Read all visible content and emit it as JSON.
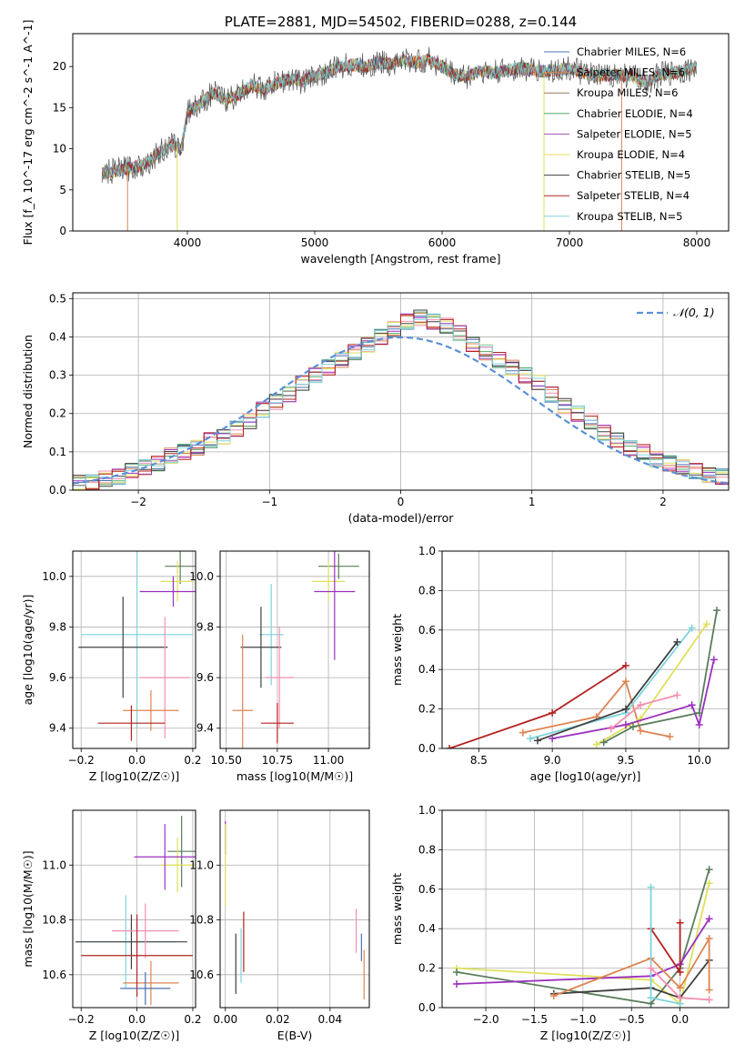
{
  "chart_data": [
    {
      "type": "line",
      "title": "PLATE=2881, MJD=54502, FIBERID=0288, z=0.144",
      "xlabel": "wavelength [Angstrom, rest frame]",
      "ylabel": "Flux [f_λ 10^-17 erg cm^-2 s^-1 A^-1]",
      "xlim": [
        3100,
        8250
      ],
      "ylim": [
        0,
        24
      ],
      "xticks": [
        "4000",
        "5000",
        "6000",
        "7000",
        "8000"
      ],
      "yticks": [
        "0",
        "5",
        "10",
        "15",
        "20"
      ],
      "grid": false,
      "legend_position": "upper-right",
      "series": [
        {
          "name": "Chabrier MILES, N_SSP=6",
          "color": "#4c72b0"
        },
        {
          "name": "Salpeter MILES, N_SSP=6",
          "color": "#dd8452"
        },
        {
          "name": "Kroupa MILES, N_SSP=6",
          "color": "#937860"
        },
        {
          "name": "Chabrier ELODIE, N_SSP=4",
          "color": "#55a868"
        },
        {
          "name": "Salpeter ELODIE, N_SSP=5",
          "color": "#9b59b6"
        },
        {
          "name": "Kroupa ELODIE, N_SSP=4",
          "color": "#dfe05a"
        },
        {
          "name": "Chabrier STELIB, N_SSP=5",
          "color": "#404040"
        },
        {
          "name": "Salpeter STELIB, N_SSP=4",
          "color": "#b22222"
        },
        {
          "name": "Kroupa STELIB, N_SSP=5",
          "color": "#7fd3dc"
        }
      ],
      "spectrum": {
        "x": [
          3330,
          3400,
          3500,
          3600,
          3700,
          3800,
          3900,
          3950,
          4000,
          4100,
          4200,
          4300,
          4400,
          4500,
          4600,
          4700,
          4800,
          4900,
          5000,
          5100,
          5200,
          5300,
          5400,
          5500,
          5600,
          5700,
          5800,
          5900,
          6000,
          6100,
          6200,
          6300,
          6400,
          6500,
          6600,
          6700,
          6800,
          6900,
          7000,
          7100,
          7200,
          7300,
          7400,
          7500,
          7600,
          7700,
          7800,
          7900,
          8000
        ],
        "y": [
          7.0,
          7.2,
          7.5,
          7.8,
          8.5,
          9.8,
          10.5,
          9.8,
          14.5,
          15.5,
          16.8,
          16.0,
          16.5,
          17.8,
          17.2,
          18.0,
          18.5,
          18.2,
          18.8,
          19.3,
          20.0,
          20.2,
          20.0,
          20.5,
          20.3,
          20.8,
          20.5,
          20.8,
          20.0,
          19.0,
          18.8,
          19.5,
          19.2,
          19.5,
          19.8,
          19.6,
          19.4,
          19.6,
          19.8,
          19.2,
          18.8,
          19.0,
          19.0,
          18.8,
          18.0,
          19.0,
          19.2,
          19.5,
          19.8
        ]
      }
    },
    {
      "type": "step",
      "xlabel": "(data-model)/error",
      "ylabel": "Normed distribution",
      "xlim": [
        -2.5,
        2.5
      ],
      "ylim": [
        0,
        0.515
      ],
      "xticks": [
        "−2",
        "−1",
        "0",
        "1",
        "2"
      ],
      "yticks": [
        "0.0",
        "0.1",
        "0.2",
        "0.3",
        "0.4",
        "0.5"
      ],
      "grid": true,
      "legend": "𝒩(0, 1)",
      "legend_position": "upper-right",
      "bin_width": 0.1,
      "histogram": [
        0.02,
        0.02,
        0.03,
        0.035,
        0.05,
        0.06,
        0.07,
        0.09,
        0.1,
        0.11,
        0.13,
        0.14,
        0.16,
        0.18,
        0.21,
        0.23,
        0.25,
        0.28,
        0.3,
        0.32,
        0.34,
        0.36,
        0.38,
        0.4,
        0.42,
        0.44,
        0.45,
        0.44,
        0.43,
        0.41,
        0.38,
        0.36,
        0.34,
        0.32,
        0.3,
        0.28,
        0.25,
        0.22,
        0.2,
        0.18,
        0.15,
        0.13,
        0.11,
        0.1,
        0.08,
        0.07,
        0.06,
        0.05,
        0.04,
        0.035
      ]
    },
    {
      "type": "errorbar",
      "xlabel": "Z [log10(Z/Z☉)]",
      "ylabel": "age [log10(age/yr)]",
      "xlim": [
        -0.23,
        0.21
      ],
      "ylim": [
        9.32,
        10.1
      ],
      "xticks": [
        "−0.2",
        "0.0",
        "0.2"
      ],
      "yticks": [
        "9.4",
        "9.6",
        "9.8",
        "10.0"
      ],
      "grid": true,
      "points": [
        {
          "x": 0.155,
          "y": 10.04,
          "xerr": 0.055,
          "yerr": 0.07,
          "color": "#5a7d5a"
        },
        {
          "x": 0.145,
          "y": 9.98,
          "xerr": 0.06,
          "yerr": 0.08,
          "color": "#dfe05a"
        },
        {
          "x": 0.13,
          "y": 9.94,
          "xerr": 0.12,
          "yerr": 0.06,
          "color": "#9b30c0"
        },
        {
          "x": 0.0,
          "y": 9.77,
          "xerr": 0.2,
          "yerr": 0.37,
          "color": "#7fd3dc"
        },
        {
          "x": -0.05,
          "y": 9.72,
          "xerr": 0.16,
          "yerr": 0.2,
          "color": "#404040"
        },
        {
          "x": 0.1,
          "y": 9.6,
          "xerr": 0.09,
          "yerr": 0.24,
          "color": "#f48fb1"
        },
        {
          "x": 0.05,
          "y": 9.47,
          "xerr": 0.1,
          "yerr": 0.08,
          "color": "#dd8452"
        },
        {
          "x": -0.02,
          "y": 9.42,
          "xerr": 0.12,
          "yerr": 0.07,
          "color": "#b22222"
        }
      ]
    },
    {
      "type": "errorbar",
      "xlabel": "mass [log10(M/M☉)]",
      "xlim": [
        10.47,
        11.2
      ],
      "ylim": [
        9.32,
        10.1
      ],
      "xticks": [
        "10.50",
        "10.75",
        "11.00"
      ],
      "yticks": [
        "9.4",
        "9.6",
        "9.8",
        "10.0"
      ],
      "grid": true,
      "points": [
        {
          "x": 11.05,
          "y": 10.04,
          "xerr": 0.1,
          "yerr": 0.05,
          "color": "#5a7d5a"
        },
        {
          "x": 11.0,
          "y": 9.98,
          "xerr": 0.08,
          "yerr": 0.08,
          "color": "#dfe05a"
        },
        {
          "x": 11.03,
          "y": 9.94,
          "xerr": 0.1,
          "yerr": 0.27,
          "color": "#9b30c0"
        },
        {
          "x": 10.72,
          "y": 9.77,
          "xerr": 0.06,
          "yerr": 0.2,
          "color": "#7fd3dc"
        },
        {
          "x": 10.67,
          "y": 9.72,
          "xerr": 0.1,
          "yerr": 0.16,
          "color": "#404040"
        },
        {
          "x": 10.76,
          "y": 9.6,
          "xerr": 0.07,
          "yerr": 0.2,
          "color": "#f48fb1"
        },
        {
          "x": 10.58,
          "y": 9.47,
          "xerr": 0.05,
          "yerr": 0.3,
          "color": "#dd8452"
        },
        {
          "x": 10.75,
          "y": 9.42,
          "xerr": 0.08,
          "yerr": 0.08,
          "color": "#b22222"
        }
      ]
    },
    {
      "type": "line",
      "xlabel": "age [log10(age/yr)]",
      "ylabel": "mass weight",
      "xlim": [
        8.25,
        10.2
      ],
      "ylim": [
        0,
        1
      ],
      "xticks": [
        "8.5",
        "9.0",
        "9.5",
        "10.0"
      ],
      "yticks": [
        "0.0",
        "0.2",
        "0.4",
        "0.6",
        "0.8",
        "1.0"
      ],
      "grid": true,
      "series": [
        {
          "color": "#b22222",
          "x": [
            8.3,
            9.0,
            9.5
          ],
          "y": [
            0.0,
            0.18,
            0.42
          ]
        },
        {
          "color": "#dd8452",
          "x": [
            8.8,
            9.3,
            9.5,
            9.6,
            9.8
          ],
          "y": [
            0.08,
            0.16,
            0.34,
            0.09,
            0.06
          ]
        },
        {
          "color": "#7fd3dc",
          "x": [
            8.85,
            9.5,
            9.95
          ],
          "y": [
            0.05,
            0.18,
            0.61
          ]
        },
        {
          "color": "#404040",
          "x": [
            8.9,
            9.5,
            9.85
          ],
          "y": [
            0.04,
            0.2,
            0.54
          ]
        },
        {
          "color": "#dfe05a",
          "x": [
            9.3,
            9.6,
            10.05
          ],
          "y": [
            0.02,
            0.15,
            0.63
          ]
        },
        {
          "color": "#9b30c0",
          "x": [
            9.0,
            9.5,
            9.95,
            10.0,
            10.1
          ],
          "y": [
            0.05,
            0.12,
            0.22,
            0.12,
            0.45
          ]
        },
        {
          "color": "#5a7d5a",
          "x": [
            9.35,
            9.55,
            10.0,
            10.12
          ],
          "y": [
            0.03,
            0.11,
            0.18,
            0.7
          ]
        },
        {
          "color": "#f48fb1",
          "x": [
            9.4,
            9.6,
            9.85
          ],
          "y": [
            0.1,
            0.22,
            0.27
          ]
        }
      ]
    },
    {
      "type": "errorbar",
      "xlabel": "Z [log10(Z/Z☉)]",
      "ylabel": "mass [log10(M/M☉)]",
      "xlim": [
        -0.23,
        0.21
      ],
      "ylim": [
        10.48,
        11.2
      ],
      "xticks": [
        "−0.2",
        "0.0",
        "0.2"
      ],
      "yticks": [
        "10.6",
        "10.8",
        "11.0"
      ],
      "grid": true,
      "points": [
        {
          "x": 0.16,
          "y": 11.05,
          "xerr": 0.05,
          "yerr": 0.13,
          "color": "#5a7d5a"
        },
        {
          "x": 0.145,
          "y": 11.0,
          "xerr": 0.06,
          "yerr": 0.1,
          "color": "#dfe05a"
        },
        {
          "x": 0.1,
          "y": 11.03,
          "xerr": 0.11,
          "yerr": 0.12,
          "color": "#9b30c0"
        },
        {
          "x": -0.04,
          "y": 10.72,
          "xerr": 0.18,
          "yerr": 0.17,
          "color": "#7fd3dc"
        },
        {
          "x": -0.02,
          "y": 10.72,
          "xerr": 0.2,
          "yerr": 0.1,
          "color": "#404040"
        },
        {
          "x": 0.03,
          "y": 10.76,
          "xerr": 0.12,
          "yerr": 0.1,
          "color": "#f48fb1"
        },
        {
          "x": 0.05,
          "y": 10.57,
          "xerr": 0.1,
          "yerr": 0.08,
          "color": "#dd8452"
        },
        {
          "x": 0.0,
          "y": 10.67,
          "xerr": 0.2,
          "yerr": 0.15,
          "color": "#b22222"
        },
        {
          "x": 0.03,
          "y": 10.55,
          "xerr": 0.09,
          "yerr": 0.06,
          "color": "#4c72b0"
        }
      ]
    },
    {
      "type": "errorbar",
      "xlabel": "E(B-V)",
      "xlim": [
        -0.002,
        0.055
      ],
      "ylim": [
        10.48,
        11.2
      ],
      "xticks": [
        "0.00",
        "0.02",
        "0.04"
      ],
      "yticks": [
        "10.6",
        "10.8",
        "11.0"
      ],
      "grid": true,
      "points": [
        {
          "x": 0.0,
          "y": 11.1,
          "yerr": 0.06,
          "color": "#9b30c0"
        },
        {
          "x": 0.0,
          "y": 11.0,
          "yerr": 0.15,
          "color": "#dfe05a"
        },
        {
          "x": 0.004,
          "y": 10.64,
          "yerr": 0.11,
          "color": "#404040"
        },
        {
          "x": 0.006,
          "y": 10.67,
          "yerr": 0.1,
          "color": "#7fd3dc"
        },
        {
          "x": 0.007,
          "y": 10.72,
          "yerr": 0.11,
          "color": "#b22222"
        },
        {
          "x": 0.05,
          "y": 10.76,
          "yerr": 0.08,
          "color": "#f48fb1"
        },
        {
          "x": 0.053,
          "y": 10.6,
          "yerr": 0.09,
          "color": "#dd8452"
        },
        {
          "x": 0.052,
          "y": 10.7,
          "yerr": 0.05,
          "color": "#4c72b0"
        }
      ]
    },
    {
      "type": "line",
      "xlabel": "Z [log10(Z/Z☉)]",
      "ylabel": "mass weight",
      "xlim": [
        -2.45,
        0.5
      ],
      "ylim": [
        0,
        1
      ],
      "xticks": [
        "−2.0",
        "−1.5",
        "−1.0",
        "−0.5",
        "0.0"
      ],
      "yticks": [
        "0.0",
        "0.2",
        "0.4",
        "0.6",
        "0.8",
        "1.0"
      ],
      "grid": true,
      "series": [
        {
          "color": "#dfe05a",
          "x": [
            -2.3,
            -0.3,
            0.0,
            0.3
          ],
          "y": [
            0.2,
            0.14,
            0.02,
            0.63
          ]
        },
        {
          "color": "#5a7d5a",
          "x": [
            -2.3,
            -0.3,
            0.0,
            0.3
          ],
          "y": [
            0.18,
            0.02,
            0.2,
            0.7
          ]
        },
        {
          "color": "#9b30c0",
          "x": [
            -2.3,
            -0.3,
            0.0,
            0.3
          ],
          "y": [
            0.12,
            0.16,
            0.22,
            0.45
          ]
        },
        {
          "color": "#404040",
          "x": [
            -1.3,
            -0.3,
            0.0,
            0.3
          ],
          "y": [
            0.07,
            0.1,
            0.05,
            0.24
          ]
        },
        {
          "color": "#dd8452",
          "x": [
            -1.3,
            -0.3,
            0.0,
            0.3,
            0.3
          ],
          "y": [
            0.06,
            0.25,
            0.1,
            0.35,
            0.09
          ]
        },
        {
          "color": "#b22222",
          "x": [
            -0.3,
            0.0,
            0.0
          ],
          "y": [
            0.4,
            0.18,
            0.43
          ]
        },
        {
          "color": "#7fd3dc",
          "x": [
            -0.3,
            -0.3,
            0.0
          ],
          "y": [
            0.61,
            0.05,
            0.02
          ]
        },
        {
          "color": "#f48fb1",
          "x": [
            -0.3,
            0.0,
            0.3
          ],
          "y": [
            0.2,
            0.05,
            0.04
          ]
        }
      ]
    }
  ]
}
